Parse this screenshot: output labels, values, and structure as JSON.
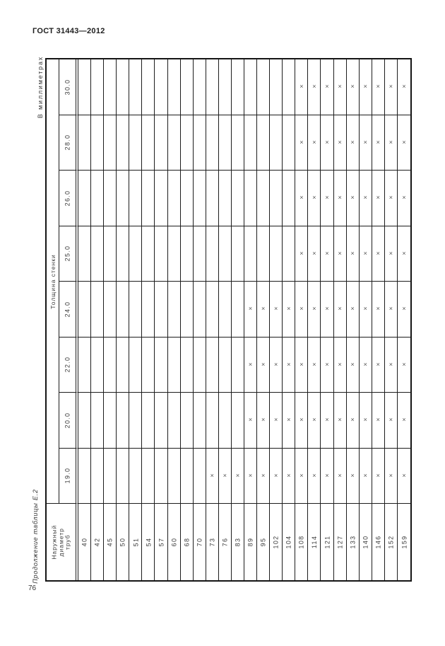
{
  "page": {
    "doc_header": "ГОСТ 31443—2012",
    "units_note": "В миллиметрах",
    "table_caption": "Продолжение таблицы Е.2",
    "page_number": "76"
  },
  "table": {
    "col_group_header": "Толщина стенки",
    "row_group_header_lines": [
      "Наружный",
      "диаметр",
      "труб"
    ],
    "mark_symbol": "×",
    "thicknesses": [
      "30.0",
      "28.0",
      "26.0",
      "25.0",
      "24.0",
      "22.0",
      "20.0",
      "19.0"
    ],
    "diameters": [
      "40",
      "42",
      "45",
      "50",
      "51",
      "54",
      "57",
      "60",
      "68",
      "70",
      "73",
      "76",
      "83",
      "89",
      "95",
      "102",
      "104",
      "108",
      "114",
      "121",
      "127",
      "133",
      "140",
      "146",
      "152",
      "159"
    ],
    "marks": {
      "30.0": [
        "108",
        "114",
        "121",
        "127",
        "133",
        "140",
        "146",
        "152",
        "159"
      ],
      "28.0": [
        "108",
        "114",
        "121",
        "127",
        "133",
        "140",
        "146",
        "152",
        "159"
      ],
      "26.0": [
        "108",
        "114",
        "121",
        "127",
        "133",
        "140",
        "146",
        "152",
        "159"
      ],
      "25.0": [
        "108",
        "114",
        "121",
        "127",
        "133",
        "140",
        "146",
        "152",
        "159"
      ],
      "24.0": [
        "89",
        "95",
        "102",
        "104",
        "108",
        "114",
        "121",
        "127",
        "133",
        "140",
        "146",
        "152",
        "159"
      ],
      "22.0": [
        "89",
        "95",
        "102",
        "104",
        "108",
        "114",
        "121",
        "127",
        "133",
        "140",
        "146",
        "152",
        "159"
      ],
      "20.0": [
        "89",
        "95",
        "102",
        "104",
        "108",
        "114",
        "121",
        "127",
        "133",
        "140",
        "146",
        "152",
        "159"
      ],
      "19.0": [
        "73",
        "76",
        "83",
        "89",
        "95",
        "102",
        "104",
        "108",
        "114",
        "121",
        "127",
        "133",
        "140",
        "146",
        "152",
        "159"
      ]
    }
  }
}
